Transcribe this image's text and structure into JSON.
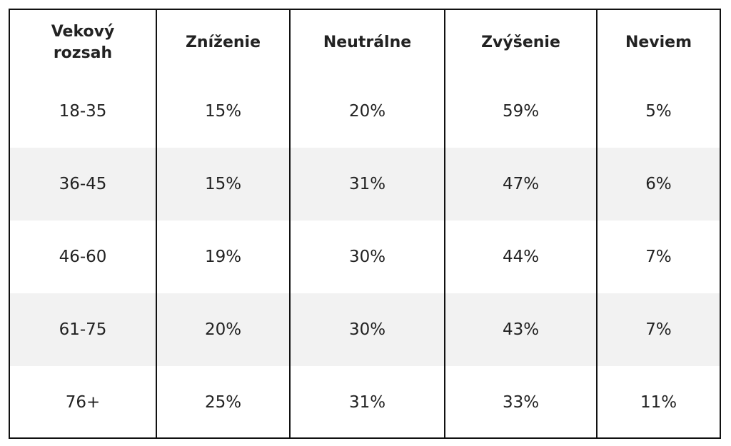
{
  "table": {
    "header": [
      "Vekový rozsah",
      "Zníženie",
      "Neutrálne",
      "Zvýšenie",
      "Neviem"
    ],
    "rows": [
      [
        "18-35",
        "15%",
        "20%",
        "59%",
        "5%"
      ],
      [
        "36-45",
        "15%",
        "31%",
        "47%",
        "6%"
      ],
      [
        "46-60",
        "19%",
        "30%",
        "44%",
        "7%"
      ],
      [
        "61-75",
        "20%",
        "30%",
        "43%",
        "7%"
      ],
      [
        "76+",
        "25%",
        "31%",
        "33%",
        "11%"
      ]
    ]
  }
}
